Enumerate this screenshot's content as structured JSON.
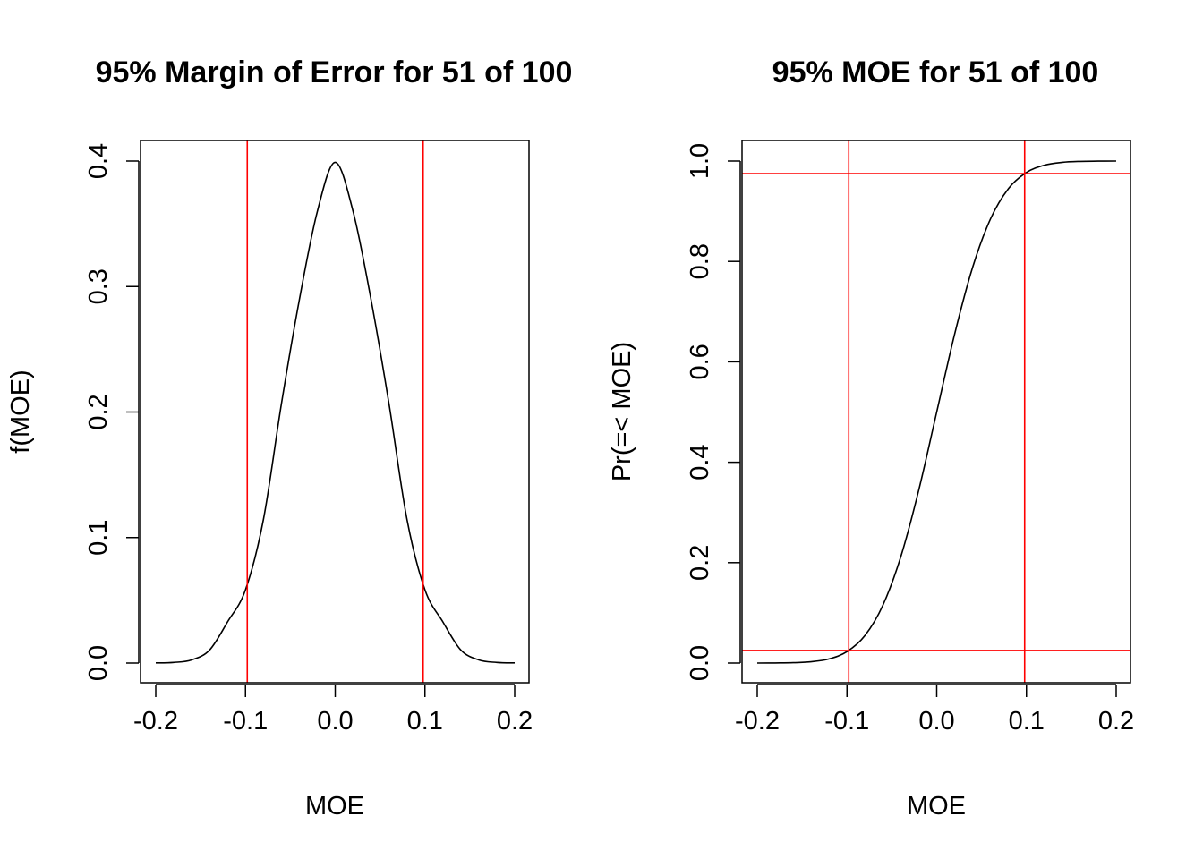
{
  "chart_data": [
    {
      "type": "line",
      "title": "95% Margin of Error for 51 of 100",
      "xlabel": "MOE",
      "ylabel": "f(MOE)",
      "xlim": [
        -0.2,
        0.2
      ],
      "ylim": [
        0,
        0.4
      ],
      "xticks": [
        -0.2,
        -0.1,
        0.0,
        0.1,
        0.2
      ],
      "xtick_labels": [
        "-0.2",
        "-0.1",
        "0.0",
        "0.1",
        "0.2"
      ],
      "yticks": [
        0.0,
        0.1,
        0.2,
        0.3,
        0.4
      ],
      "ytick_labels": [
        "0.0",
        "0.1",
        "0.2",
        "0.3",
        "0.4"
      ],
      "grid": false,
      "series": [
        {
          "x": [
            -0.2,
            -0.18,
            -0.16,
            -0.14,
            -0.12,
            -0.1,
            -0.08,
            -0.06,
            -0.04,
            -0.02,
            0.0,
            0.02,
            0.04,
            0.06,
            0.08,
            0.1,
            0.12,
            0.14,
            0.16,
            0.18,
            0.2
          ],
          "y": [
            0.0001,
            0.0005,
            0.0025,
            0.0104,
            0.0328,
            0.0584,
            0.1144,
            0.2063,
            0.2893,
            0.3596,
            0.399,
            0.3596,
            0.2893,
            0.2063,
            0.1144,
            0.0584,
            0.0328,
            0.0104,
            0.0025,
            0.0005,
            0.0001
          ]
        }
      ],
      "vlines": [
        -0.098,
        0.098
      ],
      "hlines": [],
      "line_color": "#000000",
      "ref_color": "#ff0000"
    },
    {
      "type": "line",
      "title": "95% MOE for 51 of 100",
      "xlabel": "MOE",
      "ylabel": "Pr(=< MOE)",
      "xlim": [
        -0.2,
        0.2
      ],
      "ylim": [
        0,
        1
      ],
      "xticks": [
        -0.2,
        -0.1,
        0.0,
        0.1,
        0.2
      ],
      "xtick_labels": [
        "-0.2",
        "-0.1",
        "0.0",
        "0.1",
        "0.2"
      ],
      "yticks": [
        0.0,
        0.2,
        0.4,
        0.6,
        0.8,
        1.0
      ],
      "ytick_labels": [
        "0.0",
        "0.2",
        "0.4",
        "0.6",
        "0.8",
        "1.0"
      ],
      "grid": false,
      "series": [
        {
          "x": [
            -0.2,
            -0.18,
            -0.16,
            -0.14,
            -0.12,
            -0.1,
            -0.08,
            -0.06,
            -0.04,
            -0.02,
            0.0,
            0.02,
            0.04,
            0.06,
            0.08,
            0.1,
            0.12,
            0.14,
            0.16,
            0.18,
            0.2
          ],
          "y": [
            0.0,
            0.0002,
            0.0007,
            0.0026,
            0.0082,
            0.0228,
            0.0548,
            0.1151,
            0.2119,
            0.3446,
            0.5,
            0.6554,
            0.7881,
            0.8849,
            0.9452,
            0.9772,
            0.9918,
            0.9974,
            0.9993,
            0.9998,
            1.0
          ]
        }
      ],
      "vlines": [
        -0.098,
        0.098
      ],
      "hlines": [
        0.025,
        0.975
      ],
      "line_color": "#000000",
      "ref_color": "#ff0000"
    }
  ]
}
